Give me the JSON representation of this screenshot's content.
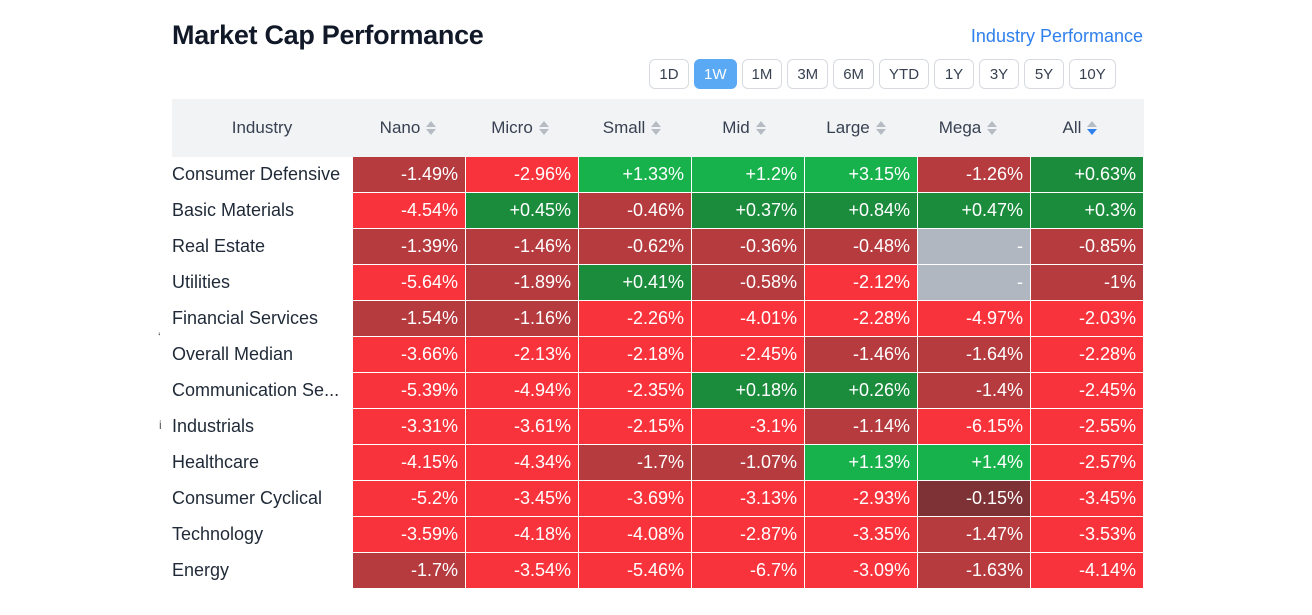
{
  "title": "Market Cap Performance",
  "industry_link": "Industry Performance",
  "periods": [
    "1D",
    "1W",
    "1M",
    "3M",
    "6M",
    "YTD",
    "1Y",
    "3Y",
    "5Y",
    "10Y"
  ],
  "active_period": "1W",
  "columns": [
    "Industry",
    "Nano",
    "Micro",
    "Small",
    "Mid",
    "Large",
    "Mega",
    "All"
  ],
  "sorted_column": "All",
  "colors": {
    "dark_red": "#b53b3f",
    "red": "#f9333b",
    "light_green": "#17b24b",
    "green": "#1a8c3c",
    "neutral": "#b1b7c1",
    "muted": "#7e3236"
  },
  "rows": [
    {
      "label": "Consumer Defensive",
      "cells": [
        [
          "-1.49%",
          "dark_red"
        ],
        [
          "-2.96%",
          "red"
        ],
        [
          "+1.33%",
          "light_green"
        ],
        [
          "+1.2%",
          "light_green"
        ],
        [
          "+3.15%",
          "light_green"
        ],
        [
          "-1.26%",
          "dark_red"
        ],
        [
          "+0.63%",
          "green"
        ]
      ]
    },
    {
      "label": "Basic Materials",
      "cells": [
        [
          "-4.54%",
          "red"
        ],
        [
          "+0.45%",
          "green"
        ],
        [
          "-0.46%",
          "dark_red"
        ],
        [
          "+0.37%",
          "green"
        ],
        [
          "+0.84%",
          "green"
        ],
        [
          "+0.47%",
          "green"
        ],
        [
          "+0.3%",
          "green"
        ]
      ]
    },
    {
      "label": "Real Estate",
      "cells": [
        [
          "-1.39%",
          "dark_red"
        ],
        [
          "-1.46%",
          "dark_red"
        ],
        [
          "-0.62%",
          "dark_red"
        ],
        [
          "-0.36%",
          "dark_red"
        ],
        [
          "-0.48%",
          "dark_red"
        ],
        [
          "-",
          "neutral"
        ],
        [
          "-0.85%",
          "dark_red"
        ]
      ]
    },
    {
      "label": "Utilities",
      "cells": [
        [
          "-5.64%",
          "red"
        ],
        [
          "-1.89%",
          "dark_red"
        ],
        [
          "+0.41%",
          "green"
        ],
        [
          "-0.58%",
          "dark_red"
        ],
        [
          "-2.12%",
          "red"
        ],
        [
          "-",
          "neutral"
        ],
        [
          "-1%",
          "dark_red"
        ]
      ]
    },
    {
      "label": "Financial Services",
      "cells": [
        [
          "-1.54%",
          "dark_red"
        ],
        [
          "-1.16%",
          "dark_red"
        ],
        [
          "-2.26%",
          "red"
        ],
        [
          "-4.01%",
          "red"
        ],
        [
          "-2.28%",
          "red"
        ],
        [
          "-4.97%",
          "red"
        ],
        [
          "-2.03%",
          "red"
        ]
      ]
    },
    {
      "label": "Overall Median",
      "cells": [
        [
          "-3.66%",
          "red"
        ],
        [
          "-2.13%",
          "red"
        ],
        [
          "-2.18%",
          "red"
        ],
        [
          "-2.45%",
          "red"
        ],
        [
          "-1.46%",
          "dark_red"
        ],
        [
          "-1.64%",
          "dark_red"
        ],
        [
          "-2.28%",
          "red"
        ]
      ]
    },
    {
      "label": "Communication Se...",
      "cells": [
        [
          "-5.39%",
          "red"
        ],
        [
          "-4.94%",
          "red"
        ],
        [
          "-2.35%",
          "red"
        ],
        [
          "+0.18%",
          "green"
        ],
        [
          "+0.26%",
          "green"
        ],
        [
          "-1.4%",
          "dark_red"
        ],
        [
          "-2.45%",
          "red"
        ]
      ]
    },
    {
      "label": "Industrials",
      "cells": [
        [
          "-3.31%",
          "red"
        ],
        [
          "-3.61%",
          "red"
        ],
        [
          "-2.15%",
          "red"
        ],
        [
          "-3.1%",
          "red"
        ],
        [
          "-1.14%",
          "dark_red"
        ],
        [
          "-6.15%",
          "red"
        ],
        [
          "-2.55%",
          "red"
        ]
      ]
    },
    {
      "label": "Healthcare",
      "cells": [
        [
          "-4.15%",
          "red"
        ],
        [
          "-4.34%",
          "red"
        ],
        [
          "-1.7%",
          "dark_red"
        ],
        [
          "-1.07%",
          "dark_red"
        ],
        [
          "+1.13%",
          "light_green"
        ],
        [
          "+1.4%",
          "light_green"
        ],
        [
          "-2.57%",
          "red"
        ]
      ]
    },
    {
      "label": "Consumer Cyclical",
      "cells": [
        [
          "-5.2%",
          "red"
        ],
        [
          "-3.45%",
          "red"
        ],
        [
          "-3.69%",
          "red"
        ],
        [
          "-3.13%",
          "red"
        ],
        [
          "-2.93%",
          "red"
        ],
        [
          "-0.15%",
          "muted"
        ],
        [
          "-3.45%",
          "red"
        ]
      ]
    },
    {
      "label": "Technology",
      "cells": [
        [
          "-3.59%",
          "red"
        ],
        [
          "-4.18%",
          "red"
        ],
        [
          "-4.08%",
          "red"
        ],
        [
          "-2.87%",
          "red"
        ],
        [
          "-3.35%",
          "red"
        ],
        [
          "-1.47%",
          "dark_red"
        ],
        [
          "-3.53%",
          "red"
        ]
      ]
    },
    {
      "label": "Energy",
      "cells": [
        [
          "-1.7%",
          "dark_red"
        ],
        [
          "-3.54%",
          "red"
        ],
        [
          "-5.46%",
          "red"
        ],
        [
          "-6.7%",
          "red"
        ],
        [
          "-3.09%",
          "red"
        ],
        [
          "-1.63%",
          "dark_red"
        ],
        [
          "-4.14%",
          "red"
        ]
      ]
    }
  ]
}
